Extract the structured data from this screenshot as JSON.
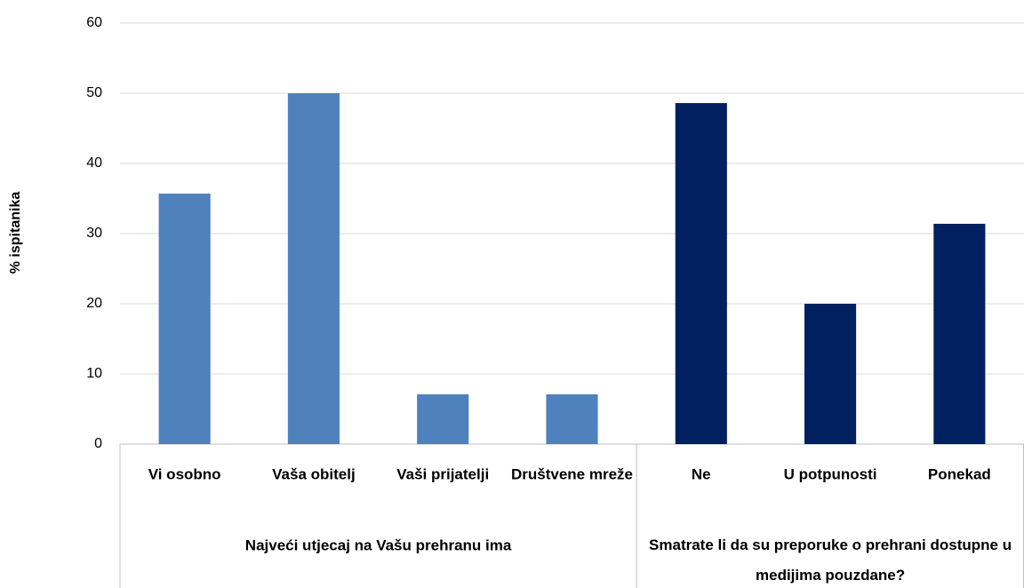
{
  "chart_data": {
    "type": "bar",
    "y_label": "% ispitanika",
    "groups": [
      {
        "name": "Najveći utjecaj na Vašu prehranu ima",
        "color": "#4f81bd",
        "categories": [
          "Vi osobno",
          "Vaša obitelj",
          "Vaši prijatelji",
          "Društvene mreže"
        ],
        "values": [
          35.7,
          50,
          7.1,
          7.1
        ]
      },
      {
        "name": "Smatrate li da su preporuke o prehrani dostupne u medijima pouzdane?",
        "color": "#002060",
        "categories": [
          "Ne",
          "U potpunosti",
          "Ponekad"
        ],
        "values": [
          48.6,
          20,
          31.4
        ]
      }
    ],
    "ylim": [
      0,
      60
    ],
    "yticks": [
      0,
      10,
      20,
      30,
      40,
      50,
      60
    ],
    "grid": true
  }
}
